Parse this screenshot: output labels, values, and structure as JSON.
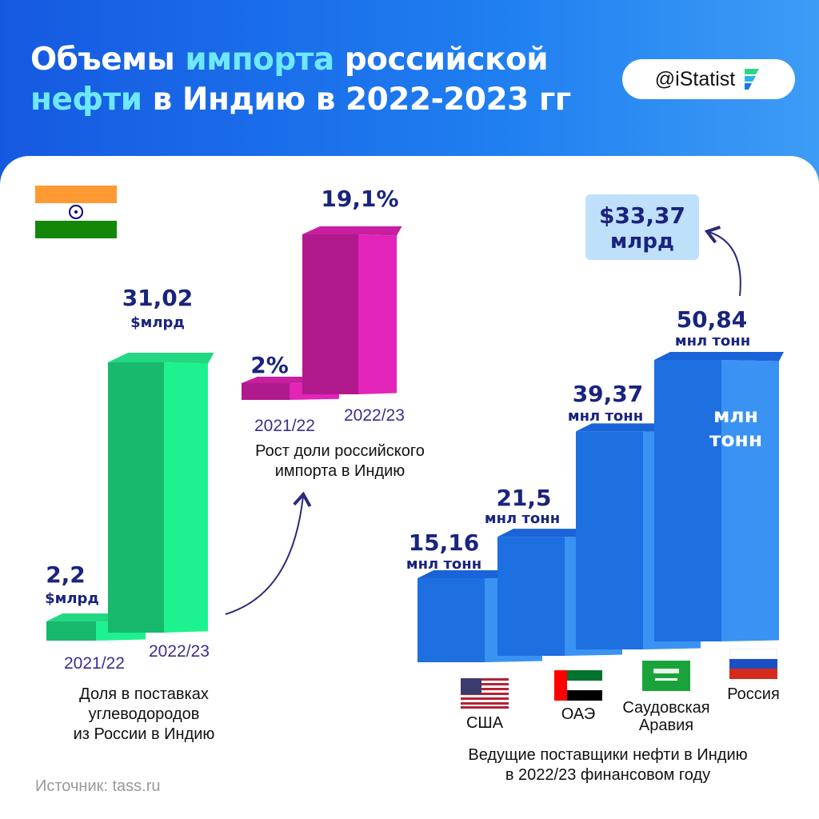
{
  "header": {
    "title_line1_a": "Объемы ",
    "title_line1_hl": "импорта",
    "title_line1_b": " российской",
    "title_line2_hl": "нефти",
    "title_line2_b": " в Индию в 2022-2023 гг",
    "badge": "@iStatist"
  },
  "colors": {
    "green": "#1fd47f",
    "magenta": "#d41ea4",
    "blue": "#1f74e6",
    "label": "#1a237e",
    "highlight": "#6ee8ff"
  },
  "chart_data": [
    {
      "type": "bar",
      "categories": [
        "2021/22",
        "2022/23"
      ],
      "values": [
        2.2,
        31.02
      ],
      "labels": [
        "2,2",
        "31,02"
      ],
      "unit": "$млрд",
      "caption": [
        "Доля в поставках",
        "углеводородов",
        "из России в Индию"
      ]
    },
    {
      "type": "bar",
      "categories": [
        "2021/22",
        "2022/23"
      ],
      "values": [
        2,
        19.1
      ],
      "labels": [
        "2%",
        "19,1%"
      ],
      "caption": [
        "Рост доли российского",
        "импорта в Индию"
      ]
    },
    {
      "type": "bar",
      "categories": [
        "США",
        "ОАЭ",
        "Саудовская Аравия",
        "Россия"
      ],
      "category_lines": [
        [
          "США"
        ],
        [
          "ОАЭ"
        ],
        [
          "Саудовская",
          "Аравия"
        ],
        [
          "Россия"
        ]
      ],
      "values": [
        15.16,
        21.5,
        39.37,
        50.84
      ],
      "labels": [
        "15,16",
        "21,5",
        "39,37",
        "50,84"
      ],
      "unit": "мнл тонн",
      "bar_text_line1": "млн",
      "bar_text_line2": "тонн",
      "callout_line1": "$33,37",
      "callout_line2": "млрд",
      "caption": [
        "Ведущие поставщики нефти в Индию",
        "в 2022/23 финансовом году"
      ]
    }
  ],
  "footer": {
    "source": "Источник: tass.ru"
  }
}
